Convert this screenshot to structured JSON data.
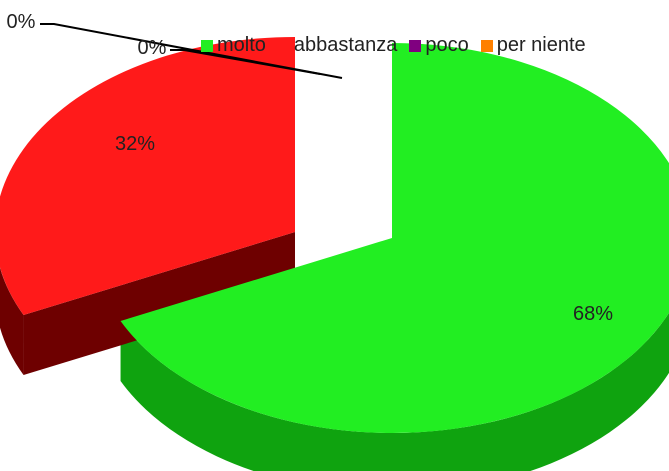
{
  "chart_data": {
    "type": "pie",
    "categories": [
      "molto",
      "abbastanza",
      "poco",
      "per niente"
    ],
    "values": [
      68,
      32,
      0,
      0
    ],
    "labels": [
      "68%",
      "32%",
      "0%",
      "0%"
    ],
    "colors": [
      "#22ee22",
      "#ff1a1a",
      "#800080",
      "#ff8000"
    ],
    "side_colors": [
      "#0fa30f",
      "#6e0000",
      "#4a004a",
      "#a05000"
    ],
    "legend_position": "top",
    "exploded": true,
    "three_d": true,
    "title": ""
  }
}
